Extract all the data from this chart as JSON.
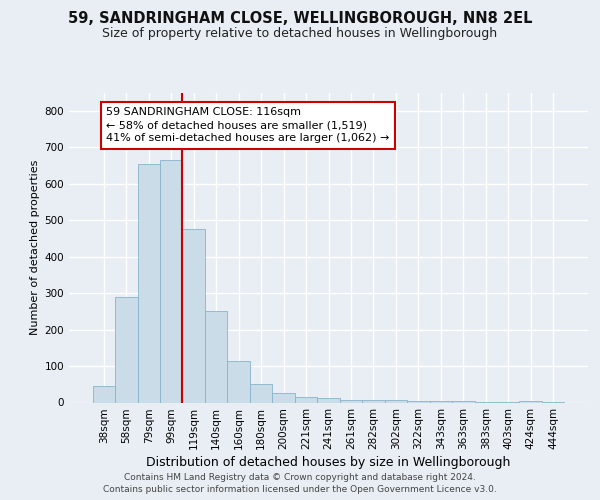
{
  "title1": "59, SANDRINGHAM CLOSE, WELLINGBOROUGH, NN8 2EL",
  "title2": "Size of property relative to detached houses in Wellingborough",
  "xlabel": "Distribution of detached houses by size in Wellingborough",
  "ylabel": "Number of detached properties",
  "categories": [
    "38sqm",
    "58sqm",
    "79sqm",
    "99sqm",
    "119sqm",
    "140sqm",
    "160sqm",
    "180sqm",
    "200sqm",
    "221sqm",
    "241sqm",
    "261sqm",
    "282sqm",
    "302sqm",
    "322sqm",
    "343sqm",
    "363sqm",
    "383sqm",
    "403sqm",
    "424sqm",
    "444sqm"
  ],
  "values": [
    45,
    290,
    655,
    665,
    475,
    250,
    115,
    50,
    27,
    15,
    13,
    8,
    6,
    8,
    5,
    5,
    5,
    2,
    1,
    5,
    1
  ],
  "bar_color": "#c9dce8",
  "bar_edge_color": "#88b4cc",
  "vline_color": "#cc0000",
  "vline_index": 3.5,
  "annotation_text": "59 SANDRINGHAM CLOSE: 116sqm\n← 58% of detached houses are smaller (1,519)\n41% of semi-detached houses are larger (1,062) →",
  "annotation_box_facecolor": "#ffffff",
  "annotation_box_edgecolor": "#cc0000",
  "ylim_max": 850,
  "yticks": [
    0,
    100,
    200,
    300,
    400,
    500,
    600,
    700,
    800
  ],
  "footer": "Contains HM Land Registry data © Crown copyright and database right 2024.\nContains public sector information licensed under the Open Government Licence v3.0.",
  "bg_color": "#e8eef4",
  "grid_color": "#ffffff",
  "title1_fontsize": 10.5,
  "title2_fontsize": 9,
  "tick_fontsize": 7.5,
  "ylabel_fontsize": 8,
  "xlabel_fontsize": 9,
  "annotation_fontsize": 8,
  "footer_fontsize": 6.5
}
